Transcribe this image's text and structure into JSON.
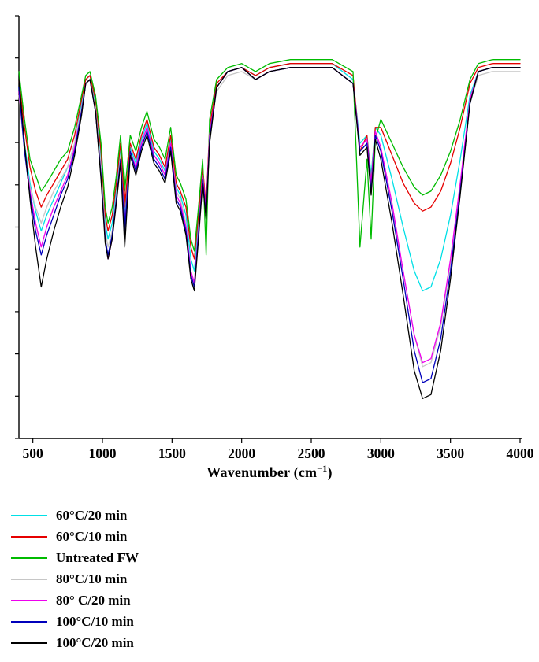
{
  "labels": {
    "xlabel_prefix": "Wavenumber (cm",
    "xlabel_sup": "−1",
    "xlabel_suffix": ")"
  },
  "chart_data": {
    "type": "line",
    "title": "",
    "xlabel": "Wavenumber (cm⁻¹)",
    "ylabel": "",
    "xlim": [
      400,
      4000
    ],
    "ylim": [
      0,
      105
    ],
    "x_ticks": [
      500,
      1000,
      1500,
      2000,
      2500,
      3000,
      3500,
      4000
    ],
    "y_tick_count": 11,
    "grid": false,
    "legend_position": "below-left",
    "axis_color": "#000000",
    "x": [
      400,
      440,
      480,
      520,
      560,
      600,
      650,
      700,
      750,
      800,
      850,
      880,
      910,
      950,
      990,
      1020,
      1040,
      1070,
      1100,
      1130,
      1160,
      1200,
      1240,
      1280,
      1320,
      1370,
      1410,
      1450,
      1490,
      1530,
      1560,
      1600,
      1635,
      1660,
      1690,
      1720,
      1745,
      1770,
      1820,
      1900,
      2000,
      2100,
      2200,
      2350,
      2500,
      2650,
      2800,
      2850,
      2900,
      2930,
      2960,
      3000,
      3080,
      3160,
      3240,
      3300,
      3360,
      3430,
      3500,
      3570,
      3640,
      3700,
      3800,
      3900,
      4000
    ],
    "series": [
      {
        "name": "60°C/20 min",
        "color": "#00e0e6",
        "values": [
          88,
          74,
          64,
          57,
          52,
          56,
          60,
          64,
          68,
          74,
          84,
          90,
          91,
          84,
          70,
          54,
          50,
          54,
          63,
          73,
          55,
          73,
          69,
          75,
          79,
          72,
          70,
          67,
          75,
          63,
          61,
          56,
          45,
          42,
          54,
          67,
          57,
          77,
          88,
          92,
          93,
          91,
          93,
          94,
          94,
          94,
          90,
          74,
          76,
          66,
          78,
          76,
          65,
          53,
          42,
          37,
          38,
          45,
          56,
          70,
          86,
          92,
          93,
          93,
          93
        ]
      },
      {
        "name": "60°C/10 min",
        "color": "#e60000",
        "values": [
          90,
          78,
          68,
          62,
          58,
          61,
          64,
          67,
          70,
          76,
          85,
          90,
          91,
          85,
          72,
          56,
          52,
          56,
          64,
          74,
          58,
          74,
          70,
          76,
          80,
          73,
          71,
          68,
          76,
          64,
          62,
          58,
          48,
          45,
          56,
          68,
          58,
          78,
          89,
          92,
          93,
          91,
          93,
          94,
          94,
          94,
          91,
          72,
          76,
          64,
          78,
          78,
          71,
          64,
          59,
          57,
          58,
          62,
          69,
          78,
          89,
          93,
          94,
          94,
          94
        ]
      },
      {
        "name": "Untreated FW",
        "color": "#00bb00",
        "values": [
          92,
          80,
          70,
          66,
          62,
          64,
          67,
          70,
          72,
          78,
          86,
          91,
          92,
          86,
          74,
          58,
          54,
          58,
          66,
          76,
          62,
          76,
          72,
          78,
          82,
          75,
          73,
          70,
          78,
          66,
          64,
          60,
          50,
          47,
          58,
          70,
          46,
          80,
          90,
          93,
          94,
          92,
          94,
          95,
          95,
          95,
          92,
          48,
          70,
          50,
          75,
          80,
          74,
          68,
          63,
          61,
          62,
          66,
          72,
          80,
          90,
          94,
          95,
          95,
          95
        ]
      },
      {
        "name": "80°C/10 min",
        "color": "#c6c6c6",
        "values": [
          86,
          72,
          63,
          58,
          54,
          58,
          62,
          65,
          68,
          74,
          83,
          89,
          90,
          83,
          68,
          52,
          48,
          52,
          61,
          71,
          50,
          72,
          68,
          74,
          78,
          71,
          69,
          66,
          74,
          62,
          60,
          54,
          42,
          39,
          52,
          66,
          56,
          76,
          87,
          91,
          92,
          90,
          92,
          93,
          93,
          93,
          89,
          72,
          74,
          63,
          76,
          72,
          58,
          42,
          26,
          18,
          19,
          28,
          44,
          63,
          84,
          91,
          92,
          92,
          92
        ]
      },
      {
        "name": "80° C/20 min",
        "color": "#ee00ee",
        "values": [
          87,
          73,
          62,
          54,
          48,
          53,
          58,
          62,
          66,
          73,
          82,
          89,
          90,
          82,
          66,
          50,
          45,
          50,
          60,
          70,
          53,
          72,
          68,
          74,
          78,
          71,
          69,
          66,
          74,
          61,
          59,
          53,
          42,
          39,
          52,
          66,
          57,
          76,
          88,
          92,
          93,
          90,
          92,
          93,
          93,
          93,
          89,
          73,
          75,
          64,
          77,
          73,
          59,
          42,
          26,
          19,
          20,
          29,
          45,
          64,
          85,
          92,
          93,
          93,
          93
        ]
      },
      {
        "name": "100°C/10 min",
        "color": "#0000bb",
        "values": [
          88,
          72,
          61,
          52,
          46,
          51,
          56,
          61,
          65,
          72,
          82,
          89,
          90,
          82,
          66,
          50,
          46,
          51,
          60,
          70,
          52,
          72,
          67,
          73,
          77,
          70,
          68,
          65,
          73,
          60,
          58,
          52,
          41,
          38,
          51,
          65,
          56,
          75,
          88,
          92,
          93,
          90,
          92,
          93,
          93,
          93,
          89,
          72,
          74,
          62,
          76,
          72,
          57,
          40,
          22,
          14,
          15,
          25,
          42,
          62,
          84,
          92,
          93,
          93,
          93
        ]
      },
      {
        "name": "100°C/20 min",
        "color": "#000000",
        "values": [
          90,
          74,
          60,
          48,
          38,
          45,
          52,
          58,
          63,
          71,
          81,
          89,
          90,
          82,
          65,
          49,
          45,
          50,
          59,
          69,
          48,
          71,
          66,
          72,
          76,
          69,
          67,
          64,
          72,
          59,
          57,
          51,
          40,
          37,
          50,
          64,
          55,
          74,
          88,
          92,
          93,
          90,
          92,
          93,
          93,
          93,
          89,
          71,
          73,
          61,
          75,
          70,
          54,
          36,
          17,
          10,
          11,
          22,
          40,
          61,
          84,
          92,
          93,
          93,
          93
        ]
      }
    ]
  }
}
